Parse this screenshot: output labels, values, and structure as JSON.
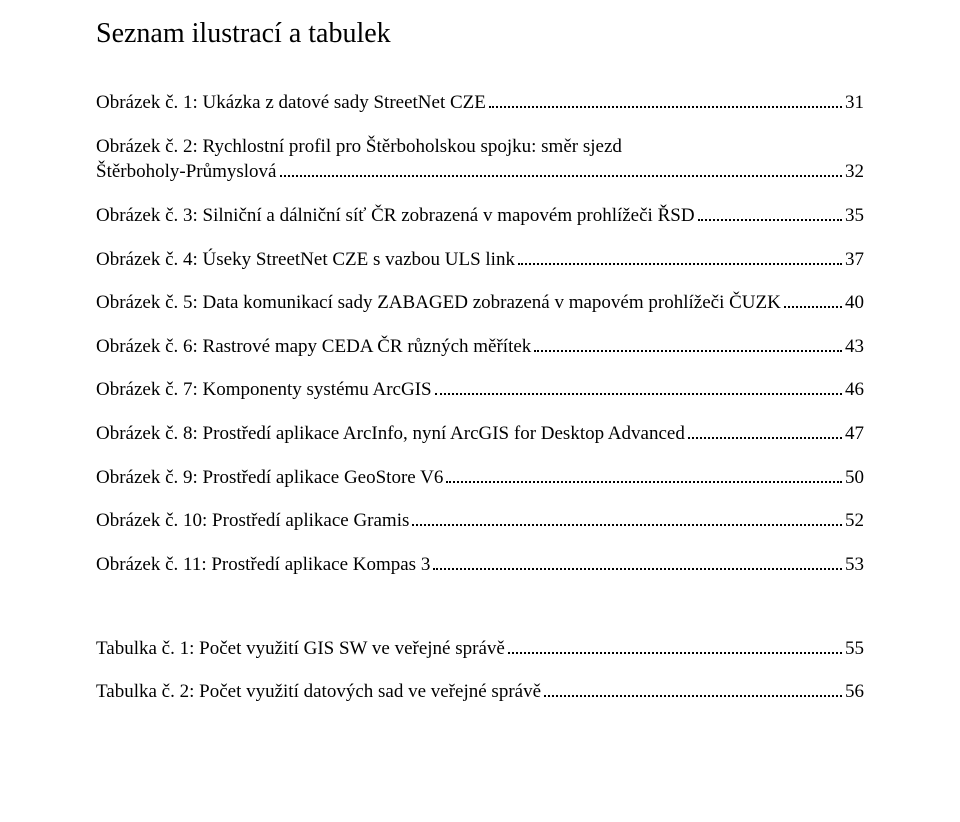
{
  "title": "Seznam ilustrací a tabulek",
  "entries": [
    {
      "label": "Obrázek č. 1: Ukázka z datové sady StreetNet CZE",
      "page": "31",
      "multiline": false
    },
    {
      "line1": "Obrázek č. 2: Rychlostní profil pro Štěrboholskou spojku: směr sjezd",
      "label": "Štěrboholy-Průmyslová",
      "page": "32",
      "multiline": true
    },
    {
      "label": "Obrázek č. 3: Silniční a dálniční síť ČR zobrazená v mapovém prohlížeči ŘSD",
      "page": "35",
      "multiline": false
    },
    {
      "label": "Obrázek č. 4: Úseky StreetNet CZE s vazbou ULS link",
      "page": "37",
      "multiline": false
    },
    {
      "label": "Obrázek č. 5: Data komunikací sady ZABAGED zobrazená v mapovém prohlížeči ČUZK",
      "page": "40",
      "multiline": false
    },
    {
      "label": "Obrázek č. 6: Rastrové mapy CEDA ČR různých měřítek",
      "page": "43",
      "multiline": false
    },
    {
      "label": "Obrázek č. 7: Komponenty systému ArcGIS",
      "page": "46",
      "multiline": false
    },
    {
      "label": "Obrázek č. 8: Prostředí aplikace ArcInfo, nyní ArcGIS for Desktop Advanced",
      "page": "47",
      "multiline": false
    },
    {
      "label": "Obrázek č. 9: Prostředí aplikace GeoStore V6",
      "page": "50",
      "multiline": false
    },
    {
      "label": "Obrázek č. 10: Prostředí aplikace Gramis",
      "page": "52",
      "multiline": false
    },
    {
      "label": "Obrázek č. 11: Prostředí aplikace Kompas 3",
      "page": "53",
      "multiline": false
    }
  ],
  "tables": [
    {
      "label": "Tabulka č. 1: Počet využití GIS SW ve veřejné správě",
      "page": "55",
      "multiline": false
    },
    {
      "label": "Tabulka č. 2: Počet využití datových sad ve veřejné správě",
      "page": "56",
      "multiline": false
    }
  ]
}
